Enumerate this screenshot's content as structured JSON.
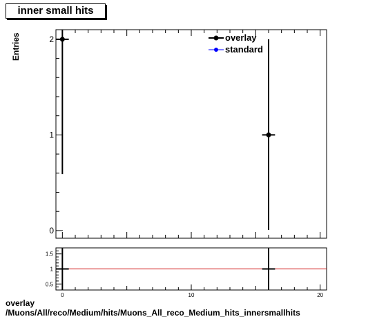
{
  "title": "inner small hits",
  "footer": {
    "line1": "overlay",
    "line2": "/Muons/All/reco/Medium/hits/Muons_All_reco_Medium_hits_innersmallhits"
  },
  "colors": {
    "overlay": "#000000",
    "standard": "#0000ff",
    "ratio_line": "#cc0000"
  },
  "chart_data": [
    {
      "type": "scatter",
      "ylabel": "Entries",
      "xlim": [
        -0.5,
        20.5
      ],
      "ylim": [
        -0.08,
        2.1
      ],
      "yticks": [
        0,
        1,
        2
      ],
      "legend_placement": "top-right",
      "series": [
        {
          "name": "overlay",
          "points": [
            {
              "x": 0,
              "xerr": 0.5,
              "y": 2,
              "yerr_low": 1.41,
              "yerr_high": 1.41
            },
            {
              "x": 16,
              "xerr": 0.5,
              "y": 1,
              "yerr_low": 1.0,
              "yerr_high": 1.0
            }
          ]
        },
        {
          "name": "standard",
          "points": []
        }
      ]
    },
    {
      "type": "line",
      "ylabel": "",
      "xlim": [
        -0.5,
        20.5
      ],
      "ylim": [
        0.3,
        1.7
      ],
      "yticks": [
        0.5,
        1,
        1.5
      ],
      "ytick_labels": [
        "0.5",
        "1",
        "1.5"
      ],
      "xticks": [
        0,
        10,
        20
      ],
      "xtick_labels": [
        "0",
        "10",
        "20"
      ],
      "reference_y": 1,
      "points": [
        {
          "x": 0,
          "xerr": 0.5,
          "y": 1
        },
        {
          "x": 16,
          "xerr": 0.5,
          "y": 1
        }
      ]
    }
  ]
}
